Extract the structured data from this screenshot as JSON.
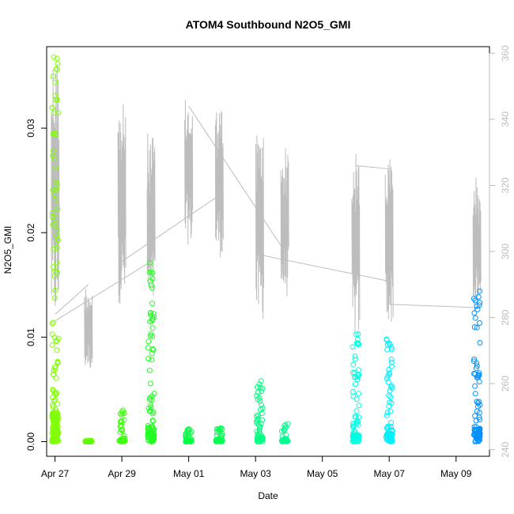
{
  "chart_data": {
    "type": "scatter",
    "title": "ATOM4 Southbound N2O5_GMI",
    "xlabel": "Date",
    "ylabel": "N2O5_GMI",
    "y2label": "",
    "grid": false,
    "legend": "none",
    "x_ticks": [
      "Apr 27",
      "Apr 29",
      "May 01",
      "May 03",
      "May 05",
      "May 07",
      "May 09"
    ],
    "x_tick_dates": [
      "2018-04-27",
      "2018-04-29",
      "2018-05-01",
      "2018-05-03",
      "2018-05-05",
      "2018-05-07",
      "2018-05-09"
    ],
    "xlim": [
      "2018-04-26T18:00",
      "2018-05-10T00:00"
    ],
    "y_ticks": [
      "0.00",
      "0.01",
      "0.02",
      "0.03"
    ],
    "y_tick_values": [
      0.0,
      0.01,
      0.02,
      0.03
    ],
    "ylim": [
      -0.0014,
      0.0378
    ],
    "y2_ticks": [
      "240",
      "260",
      "280",
      "300",
      "320",
      "340",
      "360"
    ],
    "y2_tick_values": [
      240,
      260,
      280,
      300,
      320,
      340,
      360
    ],
    "y2lim": [
      238,
      362
    ],
    "series": [
      {
        "marker": "open-circle",
        "color_by": "time",
        "colors": [
          "#80ff00",
          "#00ff40",
          "#00ffc0",
          "#00c0ff",
          "#0080ff"
        ],
        "clusters": [
          {
            "date": "2018-04-27T00:10",
            "color": "#80ff00",
            "min": 0.0,
            "max": 0.0368
          },
          {
            "date": "2018-04-28T00:00",
            "color": "#60ff00",
            "min": 0.0,
            "max": 0.0001
          },
          {
            "date": "2018-04-29T00:00",
            "color": "#40ff10",
            "min": 0.0,
            "max": 0.003
          },
          {
            "date": "2018-04-29T21:00",
            "color": "#20ff20",
            "min": 0.0,
            "max": 0.0171
          },
          {
            "date": "2018-05-01T00:00",
            "color": "#00ff40",
            "min": 0.0,
            "max": 0.0012
          },
          {
            "date": "2018-05-01T22:00",
            "color": "#00ff50",
            "min": 0.0,
            "max": 0.0013
          },
          {
            "date": "2018-05-03T03:00",
            "color": "#00ff80",
            "min": 0.0,
            "max": 0.0058
          },
          {
            "date": "2018-05-03T21:00",
            "color": "#00ff90",
            "min": 0.0,
            "max": 0.0017
          },
          {
            "date": "2018-05-06T00:00",
            "color": "#00ffe0",
            "min": 0.0,
            "max": 0.0103
          },
          {
            "date": "2018-05-07T00:00",
            "color": "#00f0ff",
            "min": 0.0,
            "max": 0.0098
          },
          {
            "date": "2018-05-09T15:00",
            "color": "#0090ff",
            "min": 0.0,
            "max": 0.0144
          }
        ]
      },
      {
        "axis": "right",
        "type": "line",
        "color": "#bdbdbd",
        "segments": [
          {
            "date": "2018-04-27T00:10",
            "min": 278,
            "max": 360
          },
          {
            "date": "2018-04-28T00:00",
            "min": 264,
            "max": 290
          },
          {
            "date": "2018-04-29T00:00",
            "min": 284,
            "max": 345
          },
          {
            "date": "2018-04-29T21:00",
            "min": 282,
            "max": 336
          },
          {
            "date": "2018-05-01T00:00",
            "min": 302,
            "max": 346
          },
          {
            "date": "2018-05-01T22:00",
            "min": 298,
            "max": 344
          },
          {
            "date": "2018-05-03T03:00",
            "min": 279,
            "max": 337
          },
          {
            "date": "2018-05-03T21:00",
            "min": 286,
            "max": 332
          },
          {
            "date": "2018-05-06T00:00",
            "min": 274,
            "max": 330
          },
          {
            "date": "2018-05-07T00:00",
            "min": 278,
            "max": 329
          },
          {
            "date": "2018-05-09T15:00",
            "min": 280,
            "max": 323
          }
        ],
        "connectors": [
          {
            "from_date": "2018-04-27T00:10",
            "from": 281,
            "to_date": "2018-04-28T00:00",
            "to": 290
          },
          {
            "from_date": "2018-04-27T00:10",
            "from": 279,
            "to_date": "2018-04-29T21:00",
            "to": 297
          },
          {
            "from_date": "2018-04-29T00:00",
            "from": 297,
            "to_date": "2018-05-01T22:00",
            "to": 317
          },
          {
            "from_date": "2018-05-01T00:00",
            "from": 344,
            "to_date": "2018-05-03T21:00",
            "to": 300
          },
          {
            "from_date": "2018-05-03T03:00",
            "from": 299,
            "to_date": "2018-05-07T00:00",
            "to": 291
          },
          {
            "from_date": "2018-05-06T00:00",
            "from": 326,
            "to_date": "2018-05-07T00:00",
            "to": 325
          },
          {
            "from_date": "2018-05-07T00:00",
            "from": 284,
            "to_date": "2018-05-09T15:00",
            "to": 283
          }
        ]
      }
    ]
  }
}
